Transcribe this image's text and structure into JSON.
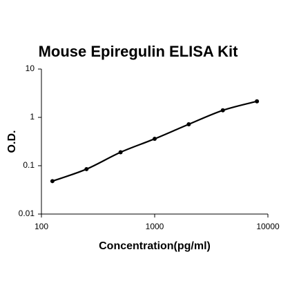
{
  "chart_data": {
    "type": "scatter",
    "title": "Mouse Epiregulin ELISA Kit",
    "x_label": "Concentration(pg/ml)",
    "y_label": "O.D.",
    "x": [
      125,
      250,
      500,
      1000,
      2000,
      4000,
      8000
    ],
    "series": [
      {
        "color": "#000000",
        "values": [
          0.048,
          0.085,
          0.19,
          0.36,
          0.72,
          1.4,
          2.15
        ]
      }
    ],
    "xscale": "log",
    "yscale": "log",
    "xlim": [
      100,
      10000
    ],
    "ylim": [
      0.01,
      10
    ],
    "xticks": [
      100,
      1000,
      10000
    ],
    "yticks": [
      0.01,
      0.1,
      1,
      10
    ],
    "fit_line": true
  }
}
